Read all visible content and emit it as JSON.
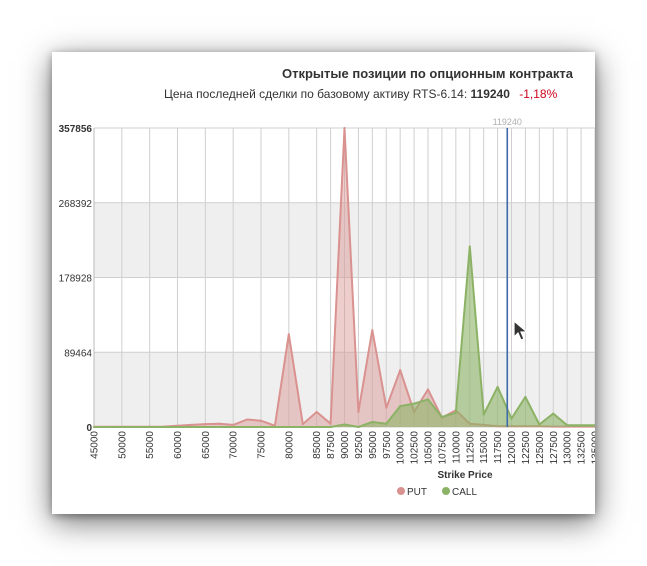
{
  "title": "Открытые позиции по опционным контракта",
  "subtitle": {
    "prefix": "Цена последней сделки по базовому активу RTS-6.14:",
    "price": "119240",
    "change": "-1,18%"
  },
  "chart_data": {
    "type": "area",
    "xlabel": "Strike Price",
    "ylabel": "",
    "ylim": [
      0,
      357856
    ],
    "y_ticks": [
      0,
      89464,
      178928,
      268392,
      357856
    ],
    "categories": [
      "45000",
      "47500",
      "50000",
      "52500",
      "55000",
      "57500",
      "60000",
      "62500",
      "65000",
      "67500",
      "70000",
      "72500",
      "75000",
      "77500",
      "80000",
      "82500",
      "85000",
      "87500",
      "90000",
      "92500",
      "95000",
      "97500",
      "100000",
      "102500",
      "105000",
      "107500",
      "110000",
      "112500",
      "115000",
      "117500",
      "120000",
      "122500",
      "125000",
      "127500",
      "130000",
      "132500",
      "135000"
    ],
    "x_tick_labels": [
      "45000",
      "50000",
      "55000",
      "60000",
      "65000",
      "70000",
      "75000",
      "80000",
      "85000",
      "87500",
      "90000",
      "92500",
      "95000",
      "97500",
      "100000",
      "102500",
      "105000",
      "107500",
      "110000",
      "112500",
      "115000",
      "117500",
      "120000",
      "122500",
      "125000",
      "127500",
      "130000",
      "132500",
      "135000"
    ],
    "series": [
      {
        "name": "PUT",
        "color": "#d9928f",
        "values": [
          200,
          200,
          200,
          200,
          300,
          500,
          1500,
          2500,
          3500,
          4000,
          2500,
          9000,
          7500,
          1500,
          111000,
          3500,
          18000,
          4000,
          357856,
          18000,
          116000,
          23000,
          68000,
          18000,
          45000,
          11000,
          20000,
          4000,
          2500,
          1000,
          1000,
          1000,
          1000,
          500,
          500,
          500,
          500
        ]
      },
      {
        "name": "CALL",
        "color": "#8cb266",
        "values": [
          0,
          0,
          0,
          0,
          0,
          0,
          0,
          0,
          0,
          0,
          0,
          0,
          0,
          0,
          0,
          0,
          0,
          0,
          3000,
          0,
          6000,
          4000,
          25000,
          28000,
          33000,
          12000,
          17000,
          216000,
          15000,
          48000,
          10000,
          36000,
          3000,
          16000,
          2000,
          2000,
          2000
        ]
      }
    ],
    "marker": {
      "label": "119240",
      "x": 119240
    },
    "grid": true,
    "legend_position": "bottom-center"
  },
  "legend": {
    "put_label": "PUT",
    "call_label": "CALL"
  }
}
